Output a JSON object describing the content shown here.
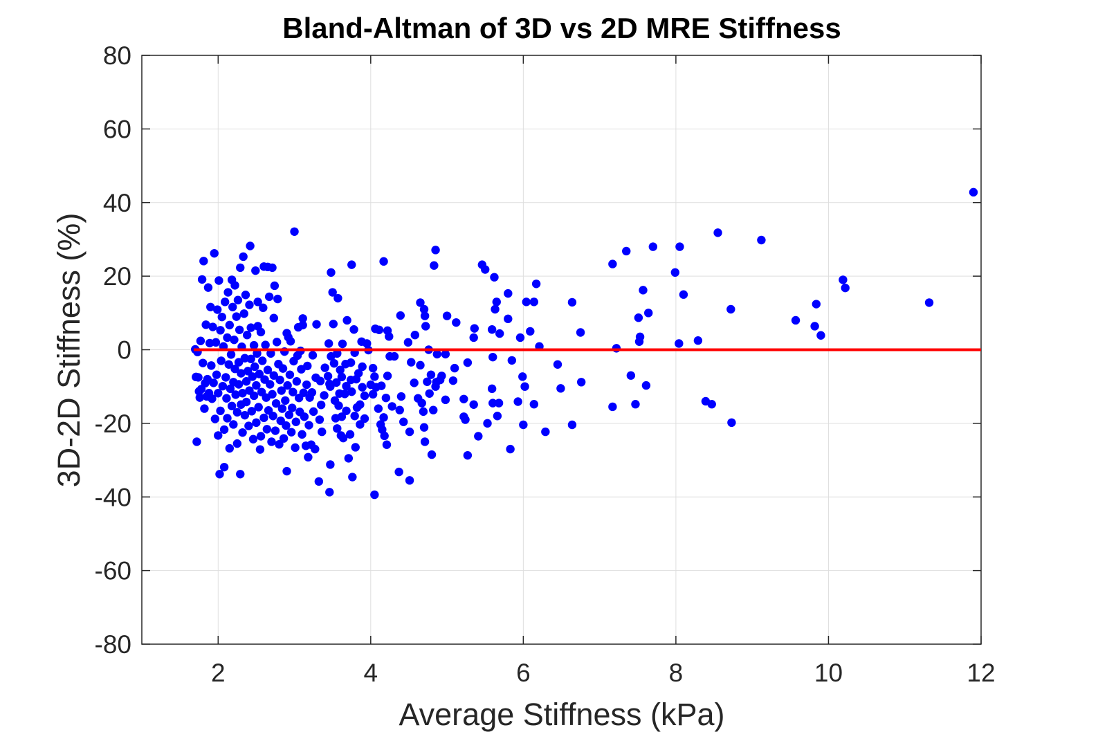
{
  "chart_data": {
    "type": "scatter",
    "title": "Bland-Altman of 3D vs 2D MRE Stiffness",
    "xlabel": "Average Stiffness (kPa)",
    "ylabel": "3D-2D Stiffness (%)",
    "xlim": [
      1,
      12
    ],
    "ylim": [
      -80,
      80
    ],
    "xticks": [
      2,
      4,
      6,
      8,
      10,
      12
    ],
    "yticks": [
      -80,
      -60,
      -40,
      -20,
      0,
      20,
      40,
      60,
      80
    ],
    "xtick_labels": [
      "2",
      "4",
      "6",
      "8",
      "10",
      "12"
    ],
    "ytick_labels": [
      "-80",
      "-60",
      "-40",
      "-20",
      "0",
      "20",
      "40",
      "60",
      "80"
    ],
    "grid": true,
    "colors": {
      "points": "#0000ff",
      "mean_line": "#ff0000"
    },
    "mean_line": {
      "y": 0,
      "x": [
        1.68,
        12
      ]
    },
    "points": [
      [
        11.9,
        42.8
      ],
      [
        11.32,
        12.8
      ],
      [
        10.22,
        16.8
      ],
      [
        10.19,
        19.0
      ],
      [
        9.9,
        3.9
      ],
      [
        9.84,
        12.4
      ],
      [
        9.82,
        6.4
      ],
      [
        9.57,
        8.0
      ],
      [
        9.12,
        29.8
      ],
      [
        8.72,
        11.0
      ],
      [
        8.73,
        -19.8
      ],
      [
        8.47,
        -14.8
      ],
      [
        8.39,
        -14.0
      ],
      [
        8.55,
        31.8
      ],
      [
        8.29,
        2.5
      ],
      [
        8.1,
        15.0
      ],
      [
        8.05,
        28.0
      ],
      [
        8.04,
        1.7
      ],
      [
        7.99,
        21.0
      ],
      [
        7.7,
        28.0
      ],
      [
        7.64,
        10.0
      ],
      [
        7.61,
        -9.7
      ],
      [
        7.57,
        16.2
      ],
      [
        7.53,
        3.5
      ],
      [
        7.52,
        2.2
      ],
      [
        7.51,
        8.7
      ],
      [
        7.47,
        -14.8
      ],
      [
        7.41,
        -7.0
      ],
      [
        7.35,
        26.8
      ],
      [
        7.22,
        0.4
      ],
      [
        7.17,
        -15.5
      ],
      [
        7.17,
        23.3
      ],
      [
        6.76,
        -8.8
      ],
      [
        6.75,
        4.7
      ],
      [
        6.64,
        12.9
      ],
      [
        6.64,
        -20.4
      ],
      [
        6.49,
        -10.5
      ],
      [
        6.45,
        -4.0
      ],
      [
        6.29,
        -22.3
      ],
      [
        6.21,
        0.9
      ],
      [
        6.17,
        17.9
      ],
      [
        6.14,
        -14.8
      ],
      [
        6.14,
        13.0
      ],
      [
        6.09,
        5.0
      ],
      [
        6.04,
        13.0
      ],
      [
        6.02,
        -10.0
      ],
      [
        6.0,
        -20.4
      ],
      [
        5.99,
        -7.3
      ],
      [
        5.96,
        3.3
      ],
      [
        5.93,
        -14.1
      ],
      [
        5.85,
        -2.9
      ],
      [
        5.83,
        -27.0
      ],
      [
        5.8,
        8.4
      ],
      [
        5.8,
        15.3
      ],
      [
        5.69,
        4.4
      ],
      [
        5.68,
        -14.5
      ],
      [
        5.66,
        -18.0
      ],
      [
        5.65,
        13.0
      ],
      [
        5.63,
        11.0
      ],
      [
        5.62,
        19.7
      ],
      [
        5.6,
        -14.5
      ],
      [
        5.6,
        -2.0
      ],
      [
        5.59,
        5.5
      ],
      [
        5.59,
        -10.6
      ],
      [
        5.53,
        -20.0
      ],
      [
        5.5,
        21.8
      ],
      [
        5.46,
        23.1
      ],
      [
        5.41,
        -23.5
      ],
      [
        5.36,
        5.8
      ],
      [
        5.35,
        -14.9
      ],
      [
        5.35,
        3.3
      ],
      [
        5.27,
        -28.7
      ],
      [
        5.27,
        -3.5
      ],
      [
        5.24,
        -19.0
      ],
      [
        5.22,
        -13.4
      ],
      [
        5.22,
        -18.2
      ],
      [
        5.12,
        7.4
      ],
      [
        5.1,
        -5.0
      ],
      [
        5.08,
        -8.4
      ],
      [
        5.0,
        9.2
      ],
      [
        4.98,
        -13.6
      ],
      [
        4.98,
        -1.2
      ],
      [
        4.93,
        -7.1
      ],
      [
        4.91,
        -8.2
      ],
      [
        4.87,
        -1.2
      ],
      [
        4.86,
        -8.8
      ],
      [
        4.85,
        27.1
      ],
      [
        4.85,
        -10.0
      ],
      [
        4.83,
        22.9
      ],
      [
        4.82,
        -16.4
      ],
      [
        4.8,
        -28.5
      ],
      [
        4.79,
        -6.8
      ],
      [
        4.77,
        -11.9
      ],
      [
        4.76,
        0.0
      ],
      [
        4.74,
        -8.7
      ],
      [
        4.72,
        6.4
      ],
      [
        4.71,
        9.2
      ],
      [
        4.71,
        -25.0
      ],
      [
        4.7,
        11.0
      ],
      [
        4.7,
        -21.1
      ],
      [
        4.69,
        -16.8
      ],
      [
        4.67,
        -14.5
      ],
      [
        4.65,
        12.8
      ],
      [
        4.65,
        -4.2
      ],
      [
        4.62,
        -13.2
      ],
      [
        4.58,
        4.0
      ],
      [
        4.57,
        -9.0
      ],
      [
        4.53,
        -3.4
      ],
      [
        4.51,
        -22.3
      ],
      [
        4.51,
        -35.5
      ],
      [
        4.49,
        2.0
      ],
      [
        4.43,
        -19.6
      ],
      [
        4.4,
        -12.7
      ],
      [
        4.39,
        9.3
      ],
      [
        4.38,
        -16.4
      ],
      [
        4.37,
        -33.2
      ],
      [
        4.31,
        -1.8
      ],
      [
        4.28,
        -15.4
      ],
      [
        4.25,
        -1.8
      ],
      [
        4.24,
        3.6
      ],
      [
        4.22,
        5.2
      ],
      [
        4.22,
        -7.1
      ],
      [
        4.21,
        -25.8
      ],
      [
        4.2,
        -13.1
      ],
      [
        4.18,
        -23.4
      ],
      [
        4.17,
        24.0
      ],
      [
        4.17,
        -18.4
      ],
      [
        4.15,
        -21.7
      ],
      [
        4.14,
        -9.8
      ],
      [
        4.13,
        -20.3
      ],
      [
        4.11,
        5.4
      ],
      [
        4.1,
        -16.0
      ],
      [
        4.07,
        -10.2
      ],
      [
        4.06,
        5.7
      ],
      [
        4.05,
        -39.4
      ],
      [
        4.05,
        -7.3
      ],
      [
        4.03,
        -12.1
      ],
      [
        4.03,
        -5.0
      ],
      [
        4.0,
        -9.5
      ],
      [
        3.97,
        -0.1
      ],
      [
        3.95,
        1.7
      ],
      [
        3.92,
        -18.7
      ],
      [
        3.92,
        -12.5
      ],
      [
        3.89,
        -10.2
      ],
      [
        3.89,
        -4.6
      ],
      [
        3.88,
        2.2
      ],
      [
        3.86,
        -20.3
      ],
      [
        3.86,
        -14.9
      ],
      [
        3.84,
        -6.4
      ],
      [
        3.82,
        -15.7
      ],
      [
        3.81,
        -8.0
      ],
      [
        3.8,
        -26.5
      ],
      [
        3.79,
        -18.0
      ],
      [
        3.79,
        -0.8
      ],
      [
        3.78,
        5.5
      ],
      [
        3.76,
        -34.6
      ],
      [
        3.75,
        -11.4
      ],
      [
        3.75,
        23.1
      ],
      [
        3.74,
        -3.5
      ],
      [
        3.74,
        -8.2
      ],
      [
        3.73,
        -23.0
      ],
      [
        3.71,
        -29.5
      ],
      [
        3.69,
        8.0
      ],
      [
        3.68,
        -9.9
      ],
      [
        3.68,
        -16.6
      ],
      [
        3.67,
        -3.9
      ],
      [
        3.66,
        -12.0
      ],
      [
        3.64,
        -24.0
      ],
      [
        3.63,
        1.6
      ],
      [
        3.62,
        -7.4
      ],
      [
        3.62,
        -18.2
      ],
      [
        3.61,
        -23.3
      ],
      [
        3.6,
        -5.5
      ],
      [
        3.59,
        -11.9
      ],
      [
        3.58,
        -15.2
      ],
      [
        3.57,
        14.0
      ],
      [
        3.56,
        -1.0
      ],
      [
        3.56,
        -21.4
      ],
      [
        3.55,
        -8.9
      ],
      [
        3.54,
        -18.6
      ],
      [
        3.53,
        -13.8
      ],
      [
        3.52,
        -3.7
      ],
      [
        3.51,
        7.0
      ],
      [
        3.5,
        15.6
      ],
      [
        3.48,
        21.0
      ],
      [
        3.48,
        -1.8
      ],
      [
        3.47,
        -10.0
      ],
      [
        3.47,
        -31.2
      ],
      [
        3.46,
        -38.7
      ],
      [
        3.46,
        -9.3
      ],
      [
        3.45,
        1.7
      ],
      [
        3.44,
        -7.2
      ],
      [
        3.4,
        -4.9
      ],
      [
        3.39,
        -12.4
      ],
      [
        3.36,
        -22.3
      ],
      [
        3.35,
        -15.0
      ],
      [
        3.34,
        -8.5
      ],
      [
        3.33,
        -19.0
      ],
      [
        3.32,
        -35.8
      ],
      [
        3.29,
        6.9
      ],
      [
        3.28,
        -7.6
      ],
      [
        3.27,
        -27.0
      ],
      [
        3.25,
        -16.8
      ],
      [
        3.24,
        -1.5
      ],
      [
        3.23,
        -11.6
      ],
      [
        3.22,
        -25.8
      ],
      [
        3.2,
        -13.0
      ],
      [
        3.19,
        -20.5
      ],
      [
        3.18,
        -29.2
      ],
      [
        3.17,
        -4.4
      ],
      [
        3.16,
        -9.5
      ],
      [
        3.15,
        -26.1
      ],
      [
        3.13,
        -18.2
      ],
      [
        3.12,
        -11.7
      ],
      [
        3.11,
        8.5
      ],
      [
        3.11,
        6.7
      ],
      [
        3.1,
        -23.0
      ],
      [
        3.09,
        -5.3
      ],
      [
        3.08,
        -0.3
      ],
      [
        3.07,
        -16.9
      ],
      [
        3.06,
        -13.1
      ],
      [
        3.05,
        6.1
      ],
      [
        3.04,
        -1.6
      ],
      [
        3.03,
        -8.6
      ],
      [
        3.02,
        -19.6
      ],
      [
        3.01,
        -26.6
      ],
      [
        3.0,
        32.1
      ],
      [
        2.99,
        -3.1
      ],
      [
        2.98,
        -11.5
      ],
      [
        2.97,
        -15.8
      ],
      [
        2.96,
        -22.4
      ],
      [
        2.95,
        2.3
      ],
      [
        2.94,
        -6.8
      ],
      [
        2.93,
        -17.7
      ],
      [
        2.92,
        3.4
      ],
      [
        2.91,
        -9.7
      ],
      [
        2.9,
        -33.0
      ],
      [
        2.9,
        4.5
      ],
      [
        2.89,
        -20.6
      ],
      [
        2.88,
        -13.8
      ],
      [
        2.87,
        -0.5
      ],
      [
        2.86,
        -24.1
      ],
      [
        2.85,
        -5.1
      ],
      [
        2.84,
        -16.0
      ],
      [
        2.83,
        -11.1
      ],
      [
        2.82,
        -19.3
      ],
      [
        2.81,
        -8.2
      ],
      [
        2.8,
        -25.7
      ],
      [
        2.79,
        -3.9
      ],
      [
        2.78,
        13.8
      ],
      [
        2.77,
        2.1
      ],
      [
        2.76,
        -14.6
      ],
      [
        2.75,
        -22.0
      ],
      [
        2.74,
        17.4
      ],
      [
        2.73,
        -7.0
      ],
      [
        2.73,
        8.6
      ],
      [
        2.72,
        -18.0
      ],
      [
        2.71,
        22.3
      ],
      [
        2.71,
        -12.1
      ],
      [
        2.7,
        -25.0
      ],
      [
        2.69,
        -1.0
      ],
      [
        2.68,
        -9.4
      ],
      [
        2.67,
        14.4
      ],
      [
        2.66,
        -16.5
      ],
      [
        2.65,
        22.5
      ],
      [
        2.65,
        -5.5
      ],
      [
        2.64,
        -21.6
      ],
      [
        2.63,
        -13.0
      ],
      [
        2.62,
        1.3
      ],
      [
        2.61,
        -8.1
      ],
      [
        2.6,
        22.6
      ],
      [
        2.6,
        -18.5
      ],
      [
        2.59,
        11.4
      ],
      [
        2.58,
        -3.0
      ],
      [
        2.57,
        -11.5
      ],
      [
        2.56,
        4.8
      ],
      [
        2.56,
        -23.5
      ],
      [
        2.55,
        -27.1
      ],
      [
        2.54,
        -6.6
      ],
      [
        2.53,
        -15.6
      ],
      [
        2.52,
        13.0
      ],
      [
        2.52,
        6.4
      ],
      [
        2.51,
        -1.0
      ],
      [
        2.5,
        -9.7
      ],
      [
        2.5,
        -19.8
      ],
      [
        2.49,
        21.5
      ],
      [
        2.48,
        -4.6
      ],
      [
        2.47,
        -12.5
      ],
      [
        2.47,
        1.2
      ],
      [
        2.46,
        -24.3
      ],
      [
        2.45,
        -7.3
      ],
      [
        2.44,
        -16.7
      ],
      [
        2.43,
        6.0
      ],
      [
        2.43,
        -2.5
      ],
      [
        2.42,
        28.2
      ],
      [
        2.41,
        -11.1
      ],
      [
        2.41,
        12.2
      ],
      [
        2.4,
        -20.7
      ],
      [
        2.39,
        -5.8
      ],
      [
        2.38,
        4.0
      ],
      [
        2.37,
        -14.2
      ],
      [
        2.37,
        -8.6
      ],
      [
        2.36,
        14.9
      ],
      [
        2.35,
        -2.3
      ],
      [
        2.35,
        -17.8
      ],
      [
        2.34,
        9.8
      ],
      [
        2.33,
        25.3
      ],
      [
        2.32,
        -22.5
      ],
      [
        2.32,
        -11.8
      ],
      [
        2.31,
        0.8
      ],
      [
        2.3,
        -6.4
      ],
      [
        2.3,
        -14.9
      ],
      [
        2.29,
        -33.8
      ],
      [
        2.29,
        22.3
      ],
      [
        2.28,
        5.4
      ],
      [
        2.27,
        -9.4
      ],
      [
        2.27,
        -3.4
      ],
      [
        2.26,
        13.5
      ],
      [
        2.25,
        -25.5
      ],
      [
        2.25,
        -17.0
      ],
      [
        2.24,
        9.0
      ],
      [
        2.23,
        -12.2
      ],
      [
        2.22,
        -5.2
      ],
      [
        2.22,
        17.5
      ],
      [
        2.21,
        2.7
      ],
      [
        2.2,
        -20.3
      ],
      [
        2.2,
        -8.8
      ],
      [
        2.19,
        11.6
      ],
      [
        2.18,
        -15.3
      ],
      [
        2.18,
        19.0
      ],
      [
        2.17,
        -1.3
      ],
      [
        2.16,
        -10.6
      ],
      [
        2.15,
        6.7
      ],
      [
        2.15,
        -26.8
      ],
      [
        2.14,
        -4.0
      ],
      [
        2.13,
        15.6
      ],
      [
        2.12,
        -18.6
      ],
      [
        2.12,
        3.3
      ],
      [
        2.11,
        -13.2
      ],
      [
        2.1,
        -7.5
      ],
      [
        2.09,
        13.0
      ],
      [
        2.08,
        -31.9
      ],
      [
        2.08,
        -21.7
      ],
      [
        2.07,
        0.9
      ],
      [
        2.06,
        -9.9
      ],
      [
        2.05,
        8.9
      ],
      [
        2.04,
        -3.0
      ],
      [
        2.03,
        -16.6
      ],
      [
        2.03,
        5.3
      ],
      [
        2.02,
        -33.8
      ],
      [
        2.01,
        18.8
      ],
      [
        2.0,
        -11.8
      ],
      [
        2.0,
        -23.3
      ],
      [
        1.99,
        10.9
      ],
      [
        1.98,
        -6.8
      ],
      [
        1.97,
        2.0
      ],
      [
        1.96,
        -18.8
      ],
      [
        1.95,
        26.2
      ],
      [
        1.94,
        -9.0
      ],
      [
        1.93,
        6.2
      ],
      [
        1.92,
        -13.3
      ],
      [
        1.91,
        -4.3
      ],
      [
        1.9,
        11.6
      ],
      [
        1.89,
        1.8
      ],
      [
        1.88,
        -11.8
      ],
      [
        1.87,
        16.9
      ],
      [
        1.86,
        -8.0
      ],
      [
        1.85,
        -12.7
      ],
      [
        1.84,
        6.8
      ],
      [
        1.83,
        -9.1
      ],
      [
        1.82,
        -16.0
      ],
      [
        1.81,
        24.1
      ],
      [
        1.8,
        -3.6
      ],
      [
        1.79,
        19.1
      ],
      [
        1.78,
        -10.7
      ],
      [
        1.77,
        2.4
      ],
      [
        1.76,
        -13.0
      ],
      [
        1.75,
        -11.3
      ],
      [
        1.74,
        -7.5
      ],
      [
        1.73,
        -0.6
      ],
      [
        1.72,
        -25.0
      ],
      [
        1.71,
        -7.4
      ],
      [
        1.7,
        0.1
      ]
    ]
  }
}
